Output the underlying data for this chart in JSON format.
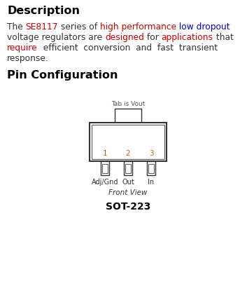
{
  "title_description": "Description",
  "title_pin": "Pin Configuration",
  "tab_label": "Tab is Vout",
  "pin_numbers": [
    "1",
    "2",
    "3"
  ],
  "pin_labels": [
    "Adj/Gnd",
    "Out",
    "In"
  ],
  "front_view_label": "Front View",
  "package_label": "SOT-223",
  "bg_color": "#ffffff",
  "text_color": "#000000",
  "red_color": "#cc0000",
  "blue_color": "#0000cc",
  "diagram_color": "#555555",
  "orange_color": "#cc6600",
  "line1_parts": [
    [
      "The ",
      "#333333"
    ],
    [
      "SE8117",
      "#cc0000"
    ],
    [
      " series of ",
      "#333333"
    ],
    [
      "high performance",
      "#cc0000"
    ],
    [
      " low dropout",
      "#0000cc"
    ]
  ],
  "line2_parts": [
    [
      "voltage regulators are ",
      "#333333"
    ],
    [
      "designed",
      "#cc0000"
    ],
    [
      " for ",
      "#333333"
    ],
    [
      "applications",
      "#cc0000"
    ],
    [
      " that",
      "#333333"
    ]
  ],
  "line3_parts": [
    [
      "require",
      "#cc0000"
    ],
    [
      "  efficient  conversion  and  fast  transient",
      "#333333"
    ]
  ],
  "line4_parts": [
    [
      "response.",
      "#333333"
    ]
  ],
  "fig_w": 3.53,
  "fig_h": 4.01,
  "dpi": 100
}
